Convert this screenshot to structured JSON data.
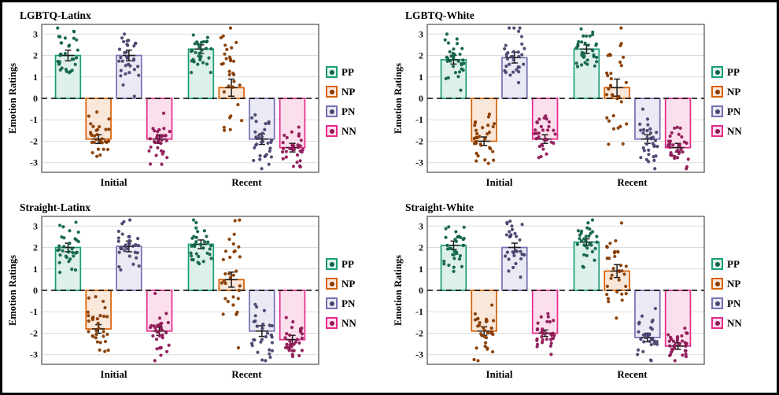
{
  "figure": {
    "background": "#ffffff",
    "border_color": "#000000"
  },
  "colors": {
    "PP": "#1b9e77",
    "NP": "#d95f02",
    "PN": "#7570b3",
    "NN": "#e7298a"
  },
  "axis": {
    "ylabel": "Emotion Ratings",
    "yticks": [
      3,
      2,
      1,
      0,
      -1,
      -2,
      -3
    ],
    "ylim": [
      -3.45,
      3.45
    ],
    "grid": true,
    "zero_line": true
  },
  "legend": {
    "position": "right",
    "labels": [
      "PP",
      "NP",
      "PN",
      "NN"
    ]
  },
  "chart_data": [
    {
      "type": "bar",
      "title": "LGBTQ-Latinx",
      "ylabel": "Emotion Ratings",
      "categories": [
        "Initial",
        "Recent"
      ],
      "ylim": [
        -3.45,
        3.45
      ],
      "series": [
        {
          "name": "PP",
          "values": [
            2.0,
            2.3
          ],
          "errors": [
            0.25,
            0.2
          ],
          "point_sd": [
            0.6,
            0.55
          ]
        },
        {
          "name": "NP",
          "values": [
            -1.9,
            0.5
          ],
          "errors": [
            0.2,
            0.4
          ],
          "point_sd": [
            0.55,
            1.55
          ]
        },
        {
          "name": "PN",
          "values": [
            2.0,
            -1.9
          ],
          "errors": [
            0.25,
            0.25
          ],
          "point_sd": [
            0.7,
            0.7
          ]
        },
        {
          "name": "NN",
          "values": [
            -1.9,
            -2.3
          ],
          "errors": [
            0.2,
            0.2
          ],
          "point_sd": [
            0.6,
            0.5
          ]
        }
      ],
      "n_points": 32
    },
    {
      "type": "bar",
      "title": "LGBTQ-White",
      "ylabel": "Emotion Ratings",
      "categories": [
        "Initial",
        "Recent"
      ],
      "ylim": [
        -3.45,
        3.45
      ],
      "series": [
        {
          "name": "PP",
          "values": [
            1.8,
            2.3
          ],
          "errors": [
            0.2,
            0.2
          ],
          "point_sd": [
            0.6,
            0.5
          ]
        },
        {
          "name": "NP",
          "values": [
            -2.0,
            0.5
          ],
          "errors": [
            0.2,
            0.4
          ],
          "point_sd": [
            0.55,
            1.5
          ]
        },
        {
          "name": "PN",
          "values": [
            1.9,
            -1.9
          ],
          "errors": [
            0.25,
            0.2
          ],
          "point_sd": [
            0.65,
            0.6
          ]
        },
        {
          "name": "NN",
          "values": [
            -1.9,
            -2.3
          ],
          "errors": [
            0.2,
            0.2
          ],
          "point_sd": [
            0.6,
            0.5
          ]
        }
      ],
      "n_points": 32
    },
    {
      "type": "bar",
      "title": "Straight-Latinx",
      "ylabel": "Emotion Ratings",
      "categories": [
        "Initial",
        "Recent"
      ],
      "ylim": [
        -3.45,
        3.45
      ],
      "series": [
        {
          "name": "PP",
          "values": [
            2.0,
            2.15
          ],
          "errors": [
            0.2,
            0.2
          ],
          "point_sd": [
            0.6,
            0.5
          ]
        },
        {
          "name": "NP",
          "values": [
            -1.8,
            0.5
          ],
          "errors": [
            0.2,
            0.35
          ],
          "point_sd": [
            0.6,
            1.4
          ]
        },
        {
          "name": "PN",
          "values": [
            2.05,
            -1.9
          ],
          "errors": [
            0.25,
            0.25
          ],
          "point_sd": [
            0.65,
            0.7
          ]
        },
        {
          "name": "NN",
          "values": [
            -1.9,
            -2.3
          ],
          "errors": [
            0.2,
            0.2
          ],
          "point_sd": [
            0.65,
            0.5
          ]
        }
      ],
      "n_points": 32
    },
    {
      "type": "bar",
      "title": "Straight-White",
      "ylabel": "Emotion Ratings",
      "categories": [
        "Initial",
        "Recent"
      ],
      "ylim": [
        -3.45,
        3.45
      ],
      "series": [
        {
          "name": "PP",
          "values": [
            2.1,
            2.25
          ],
          "errors": [
            0.2,
            0.15
          ],
          "point_sd": [
            0.55,
            0.5
          ]
        },
        {
          "name": "NP",
          "values": [
            -1.9,
            0.9
          ],
          "errors": [
            0.2,
            0.3
          ],
          "point_sd": [
            0.6,
            1.3
          ]
        },
        {
          "name": "PN",
          "values": [
            2.0,
            -2.2
          ],
          "errors": [
            0.2,
            0.2
          ],
          "point_sd": [
            0.65,
            0.55
          ]
        },
        {
          "name": "NN",
          "values": [
            -2.0,
            -2.6
          ],
          "errors": [
            0.15,
            0.15
          ],
          "point_sd": [
            0.55,
            0.4
          ]
        }
      ],
      "n_points": 32
    }
  ]
}
